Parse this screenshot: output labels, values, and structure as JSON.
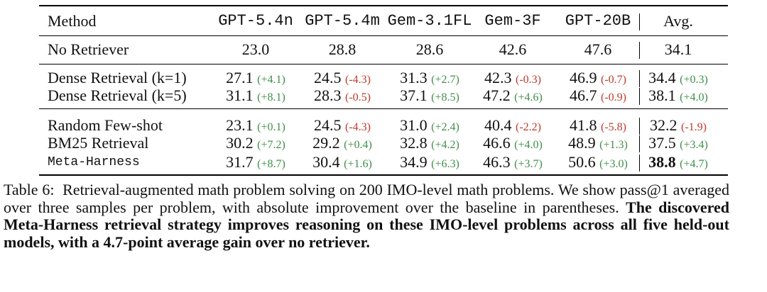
{
  "table": {
    "header": [
      "Method",
      "GPT-5.4n",
      "GPT-5.4m",
      "Gem-3.1FL",
      "Gem-3F",
      "GPT-20B",
      "Avg."
    ],
    "rows": [
      {
        "method": "No Retriever",
        "cells": [
          {
            "value": "23.0"
          },
          {
            "value": "28.8"
          },
          {
            "value": "28.6"
          },
          {
            "value": "42.6"
          },
          {
            "value": "47.6"
          },
          {
            "value": "34.1"
          }
        ]
      },
      {
        "method": "Dense Retrieval (k=1)",
        "cells": [
          {
            "value": "27.1",
            "delta": "(+4.1)"
          },
          {
            "value": "24.5",
            "delta": "(-4.3)"
          },
          {
            "value": "31.3",
            "delta": "(+2.7)"
          },
          {
            "value": "42.3",
            "delta": "(-0.3)"
          },
          {
            "value": "46.9",
            "delta": "(-0.7)"
          },
          {
            "value": "34.4",
            "delta": "(+0.3)"
          }
        ]
      },
      {
        "method": "Dense Retrieval (k=5)",
        "cells": [
          {
            "value": "31.1",
            "delta": "(+8.1)"
          },
          {
            "value": "28.3",
            "delta": "(-0.5)"
          },
          {
            "value": "37.1",
            "delta": "(+8.5)"
          },
          {
            "value": "47.2",
            "delta": "(+4.6)"
          },
          {
            "value": "46.7",
            "delta": "(-0.9)"
          },
          {
            "value": "38.1",
            "delta": "(+4.0)"
          }
        ]
      },
      {
        "method": "Random Few-shot",
        "cells": [
          {
            "value": "23.1",
            "delta": "(+0.1)"
          },
          {
            "value": "24.5",
            "delta": "(-4.3)"
          },
          {
            "value": "31.0",
            "delta": "(+2.4)"
          },
          {
            "value": "40.4",
            "delta": "(-2.2)"
          },
          {
            "value": "41.8",
            "delta": "(-5.8)"
          },
          {
            "value": "32.2",
            "delta": "(-1.9)"
          }
        ]
      },
      {
        "method": "BM25 Retrieval",
        "cells": [
          {
            "value": "30.2",
            "delta": "(+7.2)"
          },
          {
            "value": "29.2",
            "delta": "(+0.4)"
          },
          {
            "value": "32.8",
            "delta": "(+4.2)"
          },
          {
            "value": "46.6",
            "delta": "(+4.0)"
          },
          {
            "value": "48.9",
            "delta": "(+1.3)"
          },
          {
            "value": "37.5",
            "delta": "(+3.4)"
          }
        ]
      },
      {
        "method": "Meta-Harness",
        "cells": [
          {
            "value": "31.7",
            "delta": "(+8.7)"
          },
          {
            "value": "30.4",
            "delta": "(+1.6)"
          },
          {
            "value": "34.9",
            "delta": "(+6.3)"
          },
          {
            "value": "46.3",
            "delta": "(+3.7)"
          },
          {
            "value": "50.6",
            "delta": "(+3.0)"
          },
          {
            "value": "38.8",
            "delta": "(+4.7)",
            "bold": true
          }
        ]
      }
    ]
  },
  "caption": {
    "label": "Table 6:",
    "text": "Retrieval-augmented math problem solving on 200 IMO-level math problems. We show pass@1 averaged over three samples per problem, with absolute improvement over the baseline in parentheses.",
    "bold": "The discovered Meta-Harness retrieval strategy improves reasoning on these IMO-level problems across all five held-out models, with a 4.7-point average gain over no retriever."
  }
}
